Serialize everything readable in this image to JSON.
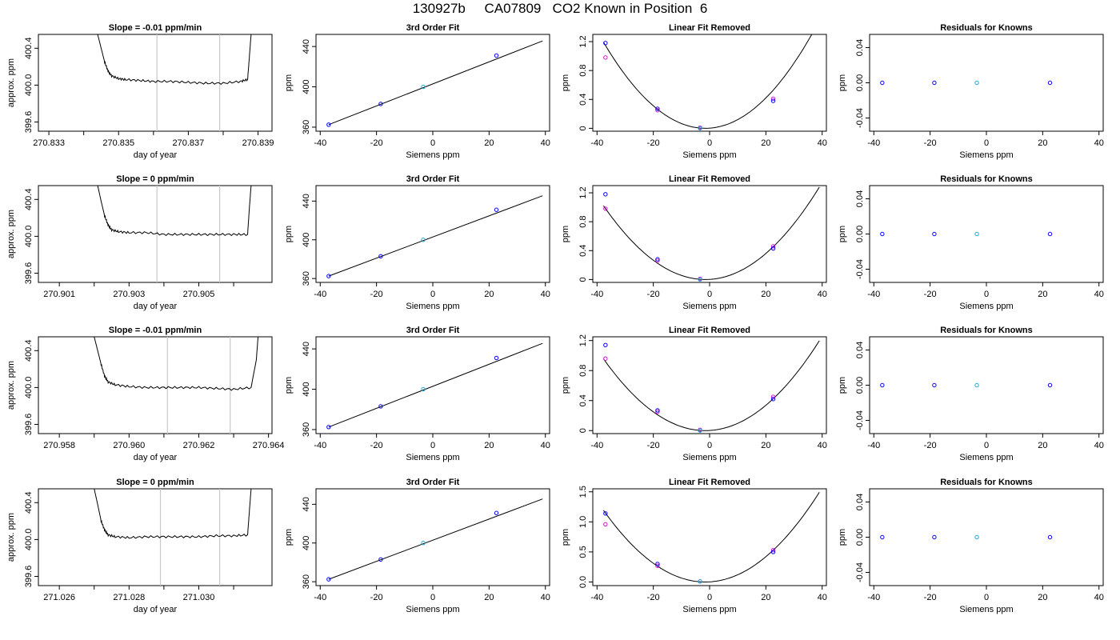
{
  "title": "130927b     CA07809   CO2 Known in Position  6",
  "colors": {
    "line": "#000000",
    "marker_blue": "#0000ff",
    "marker_magenta": "#cc00cc",
    "marker_cyan": "#1fa8d8",
    "window_line": "#c8c8c8",
    "frame": "#000000"
  },
  "chart_data": [
    {
      "type": "line",
      "row": 1,
      "title": "Slope =  -0.01  ppm/min",
      "xlabel": "day of year",
      "ylabel": "approx. ppm",
      "xlim": [
        270.8327,
        270.8394
      ],
      "ylim": [
        399.5,
        400.55
      ],
      "xticks": [
        270.833,
        270.834,
        270.835,
        270.836,
        270.837,
        270.838,
        270.839
      ],
      "xtick_labels": [
        "270.833",
        "",
        "270.835",
        "",
        "270.837",
        "",
        "270.839"
      ],
      "yticks": [
        399.6,
        400.0,
        400.4
      ],
      "ytick_labels": [
        "399.6",
        "400.0",
        "400.4"
      ],
      "window": [
        270.8361,
        270.8379
      ],
      "series": [
        {
          "x": [
            270.8344,
            270.8345,
            270.8346,
            270.8347,
            270.8348,
            270.835,
            270.8352,
            270.8356,
            270.836,
            270.8365,
            270.837,
            270.8375,
            270.838,
            270.8385,
            270.8387,
            270.83875,
            270.8388
          ],
          "y": [
            400.55,
            400.4,
            400.25,
            400.15,
            400.1,
            400.07,
            400.06,
            400.05,
            400.04,
            400.04,
            400.03,
            400.02,
            400.02,
            400.04,
            400.06,
            400.3,
            400.55
          ]
        }
      ]
    },
    {
      "type": "scatter",
      "row": 1,
      "title": "3rd Order Fit",
      "xlabel": "Siemens ppm",
      "ylabel": "ppm",
      "xlim": [
        -41.5,
        41.5
      ],
      "ylim": [
        356,
        452
      ],
      "xticks": [
        -40,
        -20,
        0,
        20,
        40
      ],
      "yticks": [
        360,
        400,
        440
      ],
      "points_x": [
        -37,
        -18.5,
        -3.4,
        22.6
      ],
      "points_y": [
        362.5,
        383,
        400,
        431
      ],
      "line": {
        "x": [
          -37,
          39
        ],
        "y": [
          362.5,
          445.5
        ]
      }
    },
    {
      "type": "scatter",
      "row": 1,
      "title": "Linear Fit Removed",
      "xlabel": "Siemens ppm",
      "ylabel": "ppm",
      "xlim": [
        -41.5,
        41.5
      ],
      "ylim": [
        -0.04,
        1.3
      ],
      "xticks": [
        -40,
        -20,
        0,
        20,
        40
      ],
      "yticks": [
        0.0,
        0.4,
        0.8,
        1.2
      ],
      "points_x": [
        -37,
        -18.5,
        -3.4,
        22.6
      ],
      "points_y": [
        1.18,
        0.27,
        0.0,
        0.38
      ],
      "points_alt_y": [
        0.98,
        0.25,
        0.01,
        0.41
      ],
      "curve": {
        "xmin": -37.7,
        "xmax": 39,
        "vertex_x": -1.5,
        "a": 0.00091
      }
    },
    {
      "type": "scatter",
      "row": 1,
      "title": "Residuals for Knowns",
      "xlabel": "Siemens ppm",
      "ylabel": "ppm",
      "xlim": [
        -41.5,
        41.5
      ],
      "ylim": [
        -0.055,
        0.055
      ],
      "xticks": [
        -40,
        -20,
        0,
        20,
        40
      ],
      "yticks": [
        -0.04,
        0.0,
        0.04
      ],
      "ytick_labels": [
        "-0.04",
        "0.00",
        "0.04"
      ],
      "points_x": [
        -37,
        -18.5,
        -3.4,
        22.6
      ],
      "points_y": [
        0,
        0,
        0,
        0
      ]
    },
    {
      "type": "line",
      "row": 2,
      "title": "Slope =  0  ppm/min",
      "xlabel": "day of year",
      "ylabel": "approx. ppm",
      "xlim": [
        270.9004,
        270.9071
      ],
      "ylim": [
        399.5,
        400.55
      ],
      "xticks": [
        270.901,
        270.902,
        270.903,
        270.904,
        270.905,
        270.906
      ],
      "xtick_labels": [
        "270.901",
        "",
        "270.903",
        "",
        "270.905",
        ""
      ],
      "yticks": [
        399.6,
        400.0,
        400.4
      ],
      "ytick_labels": [
        "399.6",
        "400.0",
        "400.4"
      ],
      "window": [
        270.9038,
        270.9056
      ],
      "series": [
        {
          "x": [
            270.9021,
            270.9022,
            270.9023,
            270.9024,
            270.9025,
            270.9027,
            270.903,
            270.9035,
            270.904,
            270.9045,
            270.905,
            270.9055,
            270.906,
            270.9064,
            270.90645,
            270.9065
          ],
          "y": [
            400.55,
            400.38,
            400.22,
            400.12,
            400.07,
            400.05,
            400.04,
            400.04,
            400.02,
            400.02,
            400.02,
            400.02,
            400.02,
            400.02,
            400.3,
            400.55
          ]
        }
      ]
    },
    {
      "type": "scatter",
      "row": 2,
      "title": "3rd Order Fit",
      "xlabel": "Siemens ppm",
      "ylabel": "ppm",
      "xlim": [
        -41.5,
        41.5
      ],
      "ylim": [
        356,
        456
      ],
      "xticks": [
        -40,
        -20,
        0,
        20,
        40
      ],
      "yticks": [
        360,
        400,
        440
      ],
      "points_x": [
        -37,
        -18.5,
        -3.4,
        22.6
      ],
      "points_y": [
        362.5,
        383,
        400,
        431
      ],
      "line": {
        "x": [
          -37,
          39
        ],
        "y": [
          362.5,
          445.5
        ]
      }
    },
    {
      "type": "scatter",
      "row": 2,
      "title": "Linear Fit Removed",
      "xlabel": "Siemens ppm",
      "ylabel": "ppm",
      "xlim": [
        -41.5,
        41.5
      ],
      "ylim": [
        -0.04,
        1.3
      ],
      "xticks": [
        -40,
        -20,
        0,
        20,
        40
      ],
      "yticks": [
        0.0,
        0.4,
        0.8,
        1.2
      ],
      "points_x": [
        -37,
        -18.5,
        -3.4,
        22.6
      ],
      "points_y": [
        1.18,
        0.28,
        0.0,
        0.43
      ],
      "points_alt_y": [
        0.98,
        0.26,
        0.01,
        0.46
      ],
      "curve": {
        "xmin": -37.7,
        "xmax": 39,
        "vertex_x": -1.5,
        "a": 0.00078
      }
    },
    {
      "type": "scatter",
      "row": 2,
      "title": "Residuals for Knowns",
      "xlabel": "Siemens ppm",
      "ylabel": "ppm",
      "xlim": [
        -41.5,
        41.5
      ],
      "ylim": [
        -0.055,
        0.055
      ],
      "xticks": [
        -40,
        -20,
        0,
        20,
        40
      ],
      "yticks": [
        -0.04,
        0.0,
        0.04
      ],
      "ytick_labels": [
        "-0.04",
        "0.00",
        "0.04"
      ],
      "points_x": [
        -37,
        -18.5,
        -3.4,
        22.6
      ],
      "points_y": [
        0,
        0,
        0,
        0
      ]
    },
    {
      "type": "line",
      "row": 3,
      "title": "Slope =  -0.01  ppm/min",
      "xlabel": "day of year",
      "ylabel": "approx. ppm",
      "xlim": [
        270.9574,
        270.9641
      ],
      "ylim": [
        399.5,
        400.55
      ],
      "xticks": [
        270.958,
        270.959,
        270.96,
        270.961,
        270.962,
        270.963,
        270.964
      ],
      "xtick_labels": [
        "270.958",
        "",
        "270.960",
        "",
        "270.962",
        "",
        "270.964"
      ],
      "yticks": [
        399.6,
        400.0,
        400.4
      ],
      "ytick_labels": [
        "399.6",
        "400.0",
        "400.4"
      ],
      "window": [
        270.9611,
        270.9629
      ],
      "series": [
        {
          "x": [
            270.959,
            270.9591,
            270.9592,
            270.9593,
            270.9594,
            270.9596,
            270.96,
            270.9605,
            270.961,
            270.9615,
            270.962,
            270.9625,
            270.963,
            270.9635,
            270.96365,
            270.9637
          ],
          "y": [
            400.55,
            400.4,
            400.25,
            400.12,
            400.06,
            400.03,
            400.01,
            400.0,
            400.0,
            400.0,
            400.0,
            399.99,
            399.98,
            400.0,
            400.3,
            400.55
          ]
        }
      ]
    },
    {
      "type": "scatter",
      "row": 3,
      "title": "3rd Order Fit",
      "xlabel": "Siemens ppm",
      "ylabel": "ppm",
      "xlim": [
        -41.5,
        41.5
      ],
      "ylim": [
        356,
        452
      ],
      "xticks": [
        -40,
        -20,
        0,
        20,
        40
      ],
      "yticks": [
        360,
        400,
        440
      ],
      "points_x": [
        -37,
        -18.5,
        -3.4,
        22.6
      ],
      "points_y": [
        362.5,
        383,
        400,
        431
      ],
      "line": {
        "x": [
          -37,
          39
        ],
        "y": [
          362.5,
          445.5
        ]
      }
    },
    {
      "type": "scatter",
      "row": 3,
      "title": "Linear Fit Removed",
      "xlabel": "Siemens ppm",
      "ylabel": "ppm",
      "xlim": [
        -41.5,
        41.5
      ],
      "ylim": [
        -0.04,
        1.25
      ],
      "xticks": [
        -40,
        -20,
        0,
        20,
        40
      ],
      "yticks": [
        0.0,
        0.4,
        0.8,
        1.2
      ],
      "points_x": [
        -37,
        -18.5,
        -3.4,
        22.6
      ],
      "points_y": [
        1.14,
        0.27,
        0.0,
        0.42
      ],
      "points_alt_y": [
        0.96,
        0.25,
        0.01,
        0.45
      ],
      "curve": {
        "xmin": -37.7,
        "xmax": 39,
        "vertex_x": -1.5,
        "a": 0.00073
      }
    },
    {
      "type": "scatter",
      "row": 3,
      "title": "Residuals for Knowns",
      "xlabel": "Siemens ppm",
      "ylabel": "ppm",
      "xlim": [
        -41.5,
        41.5
      ],
      "ylim": [
        -0.055,
        0.055
      ],
      "xticks": [
        -40,
        -20,
        0,
        20,
        40
      ],
      "yticks": [
        -0.04,
        0.0,
        0.04
      ],
      "ytick_labels": [
        "-0.04",
        "0.00",
        "0.04"
      ],
      "points_x": [
        -37,
        -18.5,
        -3.4,
        22.6
      ],
      "points_y": [
        0,
        0,
        0,
        0
      ]
    },
    {
      "type": "line",
      "row": 4,
      "title": "Slope =  0  ppm/min",
      "xlabel": "day of year",
      "ylabel": "approx. ppm",
      "xlim": [
        271.0254,
        271.0321
      ],
      "ylim": [
        399.5,
        400.55
      ],
      "xticks": [
        271.026,
        271.027,
        271.028,
        271.029,
        271.03,
        271.031
      ],
      "xtick_labels": [
        "271.026",
        "",
        "271.028",
        "",
        "271.030",
        ""
      ],
      "yticks": [
        399.6,
        400.0,
        400.4
      ],
      "ytick_labels": [
        "399.6",
        "400.0",
        "400.4"
      ],
      "window": [
        271.0289,
        271.0306
      ],
      "series": [
        {
          "x": [
            271.027,
            271.0271,
            271.0272,
            271.0273,
            271.0274,
            271.0276,
            271.028,
            271.0285,
            271.029,
            271.0295,
            271.03,
            271.0305,
            271.031,
            271.0314,
            271.03145,
            271.0315
          ],
          "y": [
            400.55,
            400.38,
            400.2,
            400.1,
            400.05,
            400.03,
            400.02,
            400.03,
            400.03,
            400.03,
            400.03,
            400.04,
            400.04,
            400.05,
            400.3,
            400.55
          ]
        }
      ]
    },
    {
      "type": "scatter",
      "row": 4,
      "title": "3rd Order Fit",
      "xlabel": "Siemens ppm",
      "ylabel": "ppm",
      "xlim": [
        -41.5,
        41.5
      ],
      "ylim": [
        356,
        456
      ],
      "xticks": [
        -40,
        -20,
        0,
        20,
        40
      ],
      "yticks": [
        360,
        400,
        440
      ],
      "points_x": [
        -37,
        -18.5,
        -3.4,
        22.6
      ],
      "points_y": [
        362.5,
        383,
        400,
        431
      ],
      "line": {
        "x": [
          -37,
          39
        ],
        "y": [
          362.5,
          445.5
        ]
      }
    },
    {
      "type": "scatter",
      "row": 4,
      "title": "Linear Fit Removed",
      "xlabel": "Siemens ppm",
      "ylabel": "ppm",
      "xlim": [
        -41.5,
        41.5
      ],
      "ylim": [
        -0.06,
        1.55
      ],
      "xticks": [
        -40,
        -20,
        0,
        20,
        40
      ],
      "yticks": [
        0.0,
        0.5,
        1.0,
        1.5
      ],
      "ytick_labels": [
        "0.0",
        "0.5",
        "1.0",
        "1.5"
      ],
      "points_x": [
        -37,
        -18.5,
        -3.4,
        22.6
      ],
      "points_y": [
        1.14,
        0.3,
        0.01,
        0.5
      ],
      "points_alt_y": [
        0.96,
        0.27,
        0.01,
        0.53
      ],
      "curve": {
        "xmin": -37.7,
        "xmax": 39,
        "vertex_x": -1.5,
        "a": 0.00091
      }
    },
    {
      "type": "scatter",
      "row": 4,
      "title": "Residuals for Knowns",
      "xlabel": "Siemens ppm",
      "ylabel": "ppm",
      "xlim": [
        -41.5,
        41.5
      ],
      "ylim": [
        -0.055,
        0.055
      ],
      "xticks": [
        -40,
        -20,
        0,
        20,
        40
      ],
      "yticks": [
        -0.04,
        0.0,
        0.04
      ],
      "ytick_labels": [
        "-0.04",
        "0.00",
        "0.04"
      ],
      "points_x": [
        -37,
        -18.5,
        -3.4,
        22.6
      ],
      "points_y": [
        0,
        0,
        0,
        0
      ]
    }
  ]
}
